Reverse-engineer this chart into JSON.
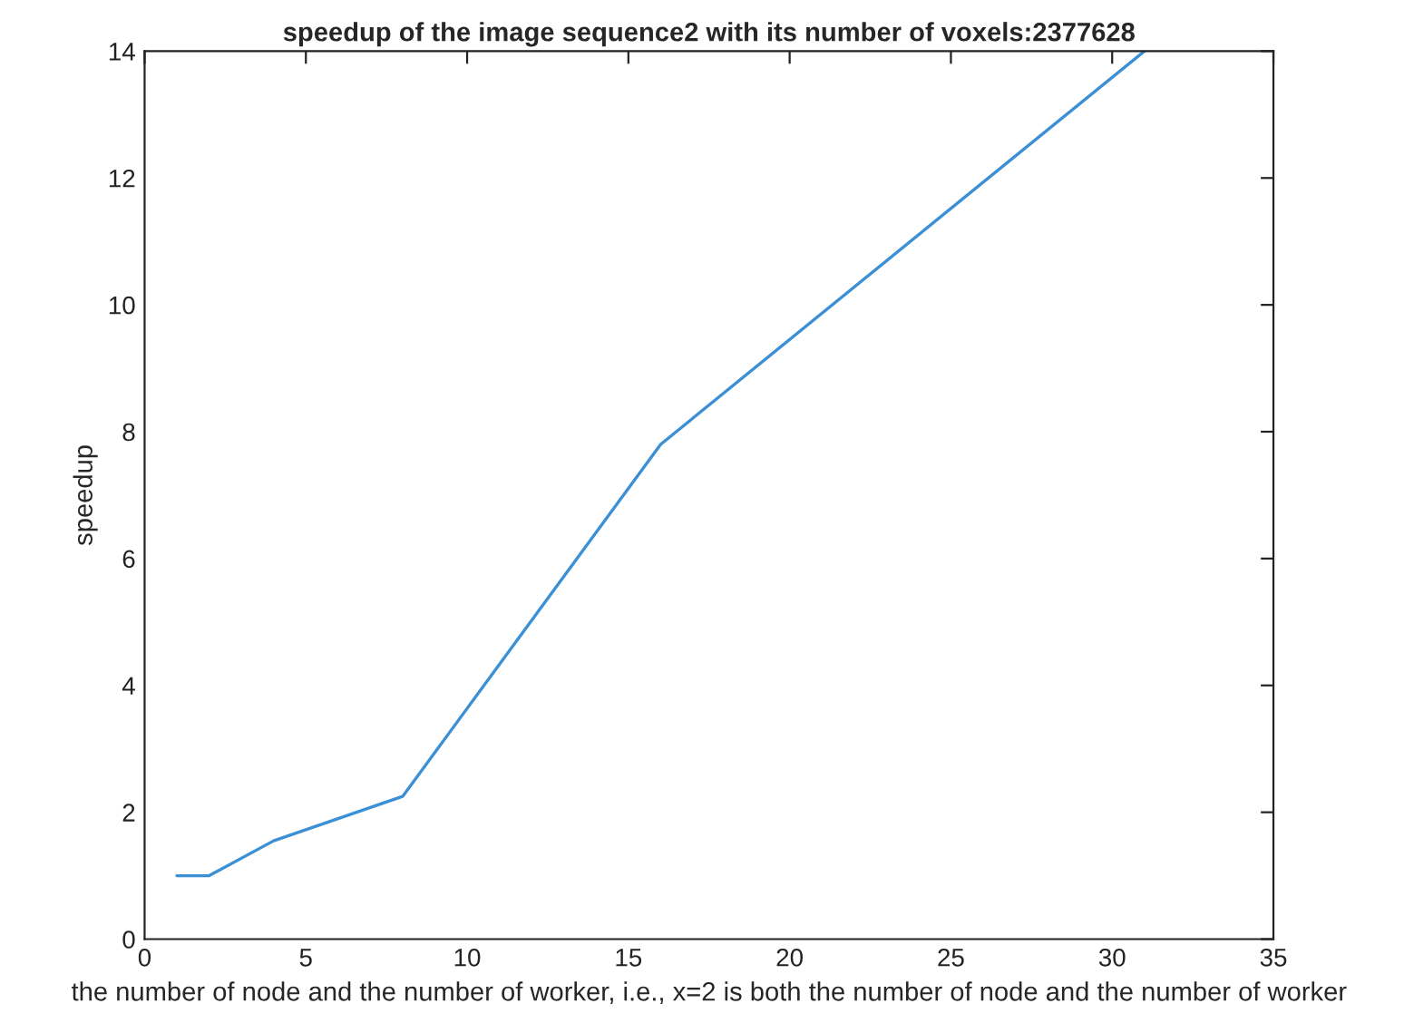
{
  "chart_data": {
    "type": "line",
    "title": "speedup of the image sequence2 with its number of voxels:2377628",
    "xlabel": "the number of node and the number of worker, i.e., x=2 is both the number of node and the number of worker",
    "ylabel": "speedup",
    "x": [
      1,
      2,
      4,
      8,
      16,
      31
    ],
    "series": [
      {
        "color": "#3b8fd5",
        "values": [
          1,
          1,
          1.55,
          2.25,
          7.8,
          14
        ]
      }
    ],
    "xlim": [
      0,
      35
    ],
    "ylim": [
      0,
      14
    ],
    "xticks": [
      0,
      5,
      10,
      15,
      20,
      25,
      30,
      35
    ],
    "yticks": [
      0,
      2,
      4,
      6,
      8,
      10,
      12,
      14
    ],
    "grid": false,
    "marker": "none",
    "line_style": "solid"
  }
}
